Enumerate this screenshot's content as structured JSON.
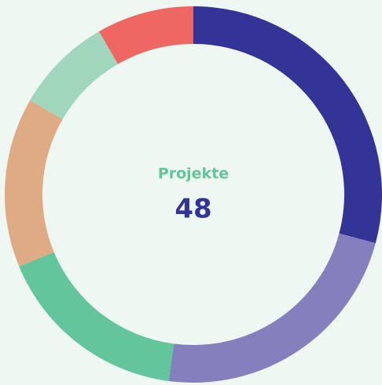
{
  "chart_data": {
    "type": "donut",
    "values": [
      14,
      11,
      8,
      7,
      4,
      4
    ],
    "colors": [
      "#343396",
      "#8480be",
      "#62c59b",
      "#dfab84",
      "#a0d6bc",
      "#ef6762"
    ],
    "center_label": "Projekte",
    "center_value": 48
  }
}
